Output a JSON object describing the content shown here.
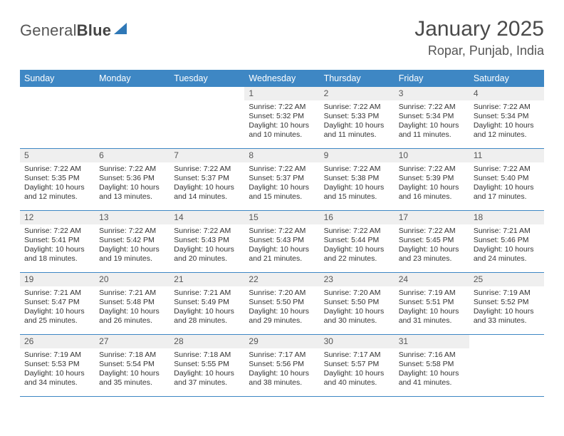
{
  "brand": {
    "name_a": "General",
    "name_b": "Blue"
  },
  "title": "January 2025",
  "location": "Ropar, Punjab, India",
  "colors": {
    "accent": "#3e87c4",
    "head_bg": "#efefef",
    "text": "#333333",
    "muted": "#565656"
  },
  "weekday_labels": [
    "Sunday",
    "Monday",
    "Tuesday",
    "Wednesday",
    "Thursday",
    "Friday",
    "Saturday"
  ],
  "layout": {
    "cols": 7,
    "rows": 5,
    "cell_min_h": 86,
    "font_body": 10.5,
    "font_daynum": 12,
    "font_head": 12.5
  },
  "weeks": [
    [
      {
        "empty": true
      },
      {
        "empty": true
      },
      {
        "empty": true
      },
      {
        "day": "1",
        "sunrise": "Sunrise: 7:22 AM",
        "sunset": "Sunset: 5:32 PM",
        "day1": "Daylight: 10 hours",
        "day2": "and 10 minutes."
      },
      {
        "day": "2",
        "sunrise": "Sunrise: 7:22 AM",
        "sunset": "Sunset: 5:33 PM",
        "day1": "Daylight: 10 hours",
        "day2": "and 11 minutes."
      },
      {
        "day": "3",
        "sunrise": "Sunrise: 7:22 AM",
        "sunset": "Sunset: 5:34 PM",
        "day1": "Daylight: 10 hours",
        "day2": "and 11 minutes."
      },
      {
        "day": "4",
        "sunrise": "Sunrise: 7:22 AM",
        "sunset": "Sunset: 5:34 PM",
        "day1": "Daylight: 10 hours",
        "day2": "and 12 minutes."
      }
    ],
    [
      {
        "day": "5",
        "sunrise": "Sunrise: 7:22 AM",
        "sunset": "Sunset: 5:35 PM",
        "day1": "Daylight: 10 hours",
        "day2": "and 12 minutes."
      },
      {
        "day": "6",
        "sunrise": "Sunrise: 7:22 AM",
        "sunset": "Sunset: 5:36 PM",
        "day1": "Daylight: 10 hours",
        "day2": "and 13 minutes."
      },
      {
        "day": "7",
        "sunrise": "Sunrise: 7:22 AM",
        "sunset": "Sunset: 5:37 PM",
        "day1": "Daylight: 10 hours",
        "day2": "and 14 minutes."
      },
      {
        "day": "8",
        "sunrise": "Sunrise: 7:22 AM",
        "sunset": "Sunset: 5:37 PM",
        "day1": "Daylight: 10 hours",
        "day2": "and 15 minutes."
      },
      {
        "day": "9",
        "sunrise": "Sunrise: 7:22 AM",
        "sunset": "Sunset: 5:38 PM",
        "day1": "Daylight: 10 hours",
        "day2": "and 15 minutes."
      },
      {
        "day": "10",
        "sunrise": "Sunrise: 7:22 AM",
        "sunset": "Sunset: 5:39 PM",
        "day1": "Daylight: 10 hours",
        "day2": "and 16 minutes."
      },
      {
        "day": "11",
        "sunrise": "Sunrise: 7:22 AM",
        "sunset": "Sunset: 5:40 PM",
        "day1": "Daylight: 10 hours",
        "day2": "and 17 minutes."
      }
    ],
    [
      {
        "day": "12",
        "sunrise": "Sunrise: 7:22 AM",
        "sunset": "Sunset: 5:41 PM",
        "day1": "Daylight: 10 hours",
        "day2": "and 18 minutes."
      },
      {
        "day": "13",
        "sunrise": "Sunrise: 7:22 AM",
        "sunset": "Sunset: 5:42 PM",
        "day1": "Daylight: 10 hours",
        "day2": "and 19 minutes."
      },
      {
        "day": "14",
        "sunrise": "Sunrise: 7:22 AM",
        "sunset": "Sunset: 5:43 PM",
        "day1": "Daylight: 10 hours",
        "day2": "and 20 minutes."
      },
      {
        "day": "15",
        "sunrise": "Sunrise: 7:22 AM",
        "sunset": "Sunset: 5:43 PM",
        "day1": "Daylight: 10 hours",
        "day2": "and 21 minutes."
      },
      {
        "day": "16",
        "sunrise": "Sunrise: 7:22 AM",
        "sunset": "Sunset: 5:44 PM",
        "day1": "Daylight: 10 hours",
        "day2": "and 22 minutes."
      },
      {
        "day": "17",
        "sunrise": "Sunrise: 7:22 AM",
        "sunset": "Sunset: 5:45 PM",
        "day1": "Daylight: 10 hours",
        "day2": "and 23 minutes."
      },
      {
        "day": "18",
        "sunrise": "Sunrise: 7:21 AM",
        "sunset": "Sunset: 5:46 PM",
        "day1": "Daylight: 10 hours",
        "day2": "and 24 minutes."
      }
    ],
    [
      {
        "day": "19",
        "sunrise": "Sunrise: 7:21 AM",
        "sunset": "Sunset: 5:47 PM",
        "day1": "Daylight: 10 hours",
        "day2": "and 25 minutes."
      },
      {
        "day": "20",
        "sunrise": "Sunrise: 7:21 AM",
        "sunset": "Sunset: 5:48 PM",
        "day1": "Daylight: 10 hours",
        "day2": "and 26 minutes."
      },
      {
        "day": "21",
        "sunrise": "Sunrise: 7:21 AM",
        "sunset": "Sunset: 5:49 PM",
        "day1": "Daylight: 10 hours",
        "day2": "and 28 minutes."
      },
      {
        "day": "22",
        "sunrise": "Sunrise: 7:20 AM",
        "sunset": "Sunset: 5:50 PM",
        "day1": "Daylight: 10 hours",
        "day2": "and 29 minutes."
      },
      {
        "day": "23",
        "sunrise": "Sunrise: 7:20 AM",
        "sunset": "Sunset: 5:50 PM",
        "day1": "Daylight: 10 hours",
        "day2": "and 30 minutes."
      },
      {
        "day": "24",
        "sunrise": "Sunrise: 7:19 AM",
        "sunset": "Sunset: 5:51 PM",
        "day1": "Daylight: 10 hours",
        "day2": "and 31 minutes."
      },
      {
        "day": "25",
        "sunrise": "Sunrise: 7:19 AM",
        "sunset": "Sunset: 5:52 PM",
        "day1": "Daylight: 10 hours",
        "day2": "and 33 minutes."
      }
    ],
    [
      {
        "day": "26",
        "sunrise": "Sunrise: 7:19 AM",
        "sunset": "Sunset: 5:53 PM",
        "day1": "Daylight: 10 hours",
        "day2": "and 34 minutes."
      },
      {
        "day": "27",
        "sunrise": "Sunrise: 7:18 AM",
        "sunset": "Sunset: 5:54 PM",
        "day1": "Daylight: 10 hours",
        "day2": "and 35 minutes."
      },
      {
        "day": "28",
        "sunrise": "Sunrise: 7:18 AM",
        "sunset": "Sunset: 5:55 PM",
        "day1": "Daylight: 10 hours",
        "day2": "and 37 minutes."
      },
      {
        "day": "29",
        "sunrise": "Sunrise: 7:17 AM",
        "sunset": "Sunset: 5:56 PM",
        "day1": "Daylight: 10 hours",
        "day2": "and 38 minutes."
      },
      {
        "day": "30",
        "sunrise": "Sunrise: 7:17 AM",
        "sunset": "Sunset: 5:57 PM",
        "day1": "Daylight: 10 hours",
        "day2": "and 40 minutes."
      },
      {
        "day": "31",
        "sunrise": "Sunrise: 7:16 AM",
        "sunset": "Sunset: 5:58 PM",
        "day1": "Daylight: 10 hours",
        "day2": "and 41 minutes."
      },
      {
        "empty": true
      }
    ]
  ]
}
